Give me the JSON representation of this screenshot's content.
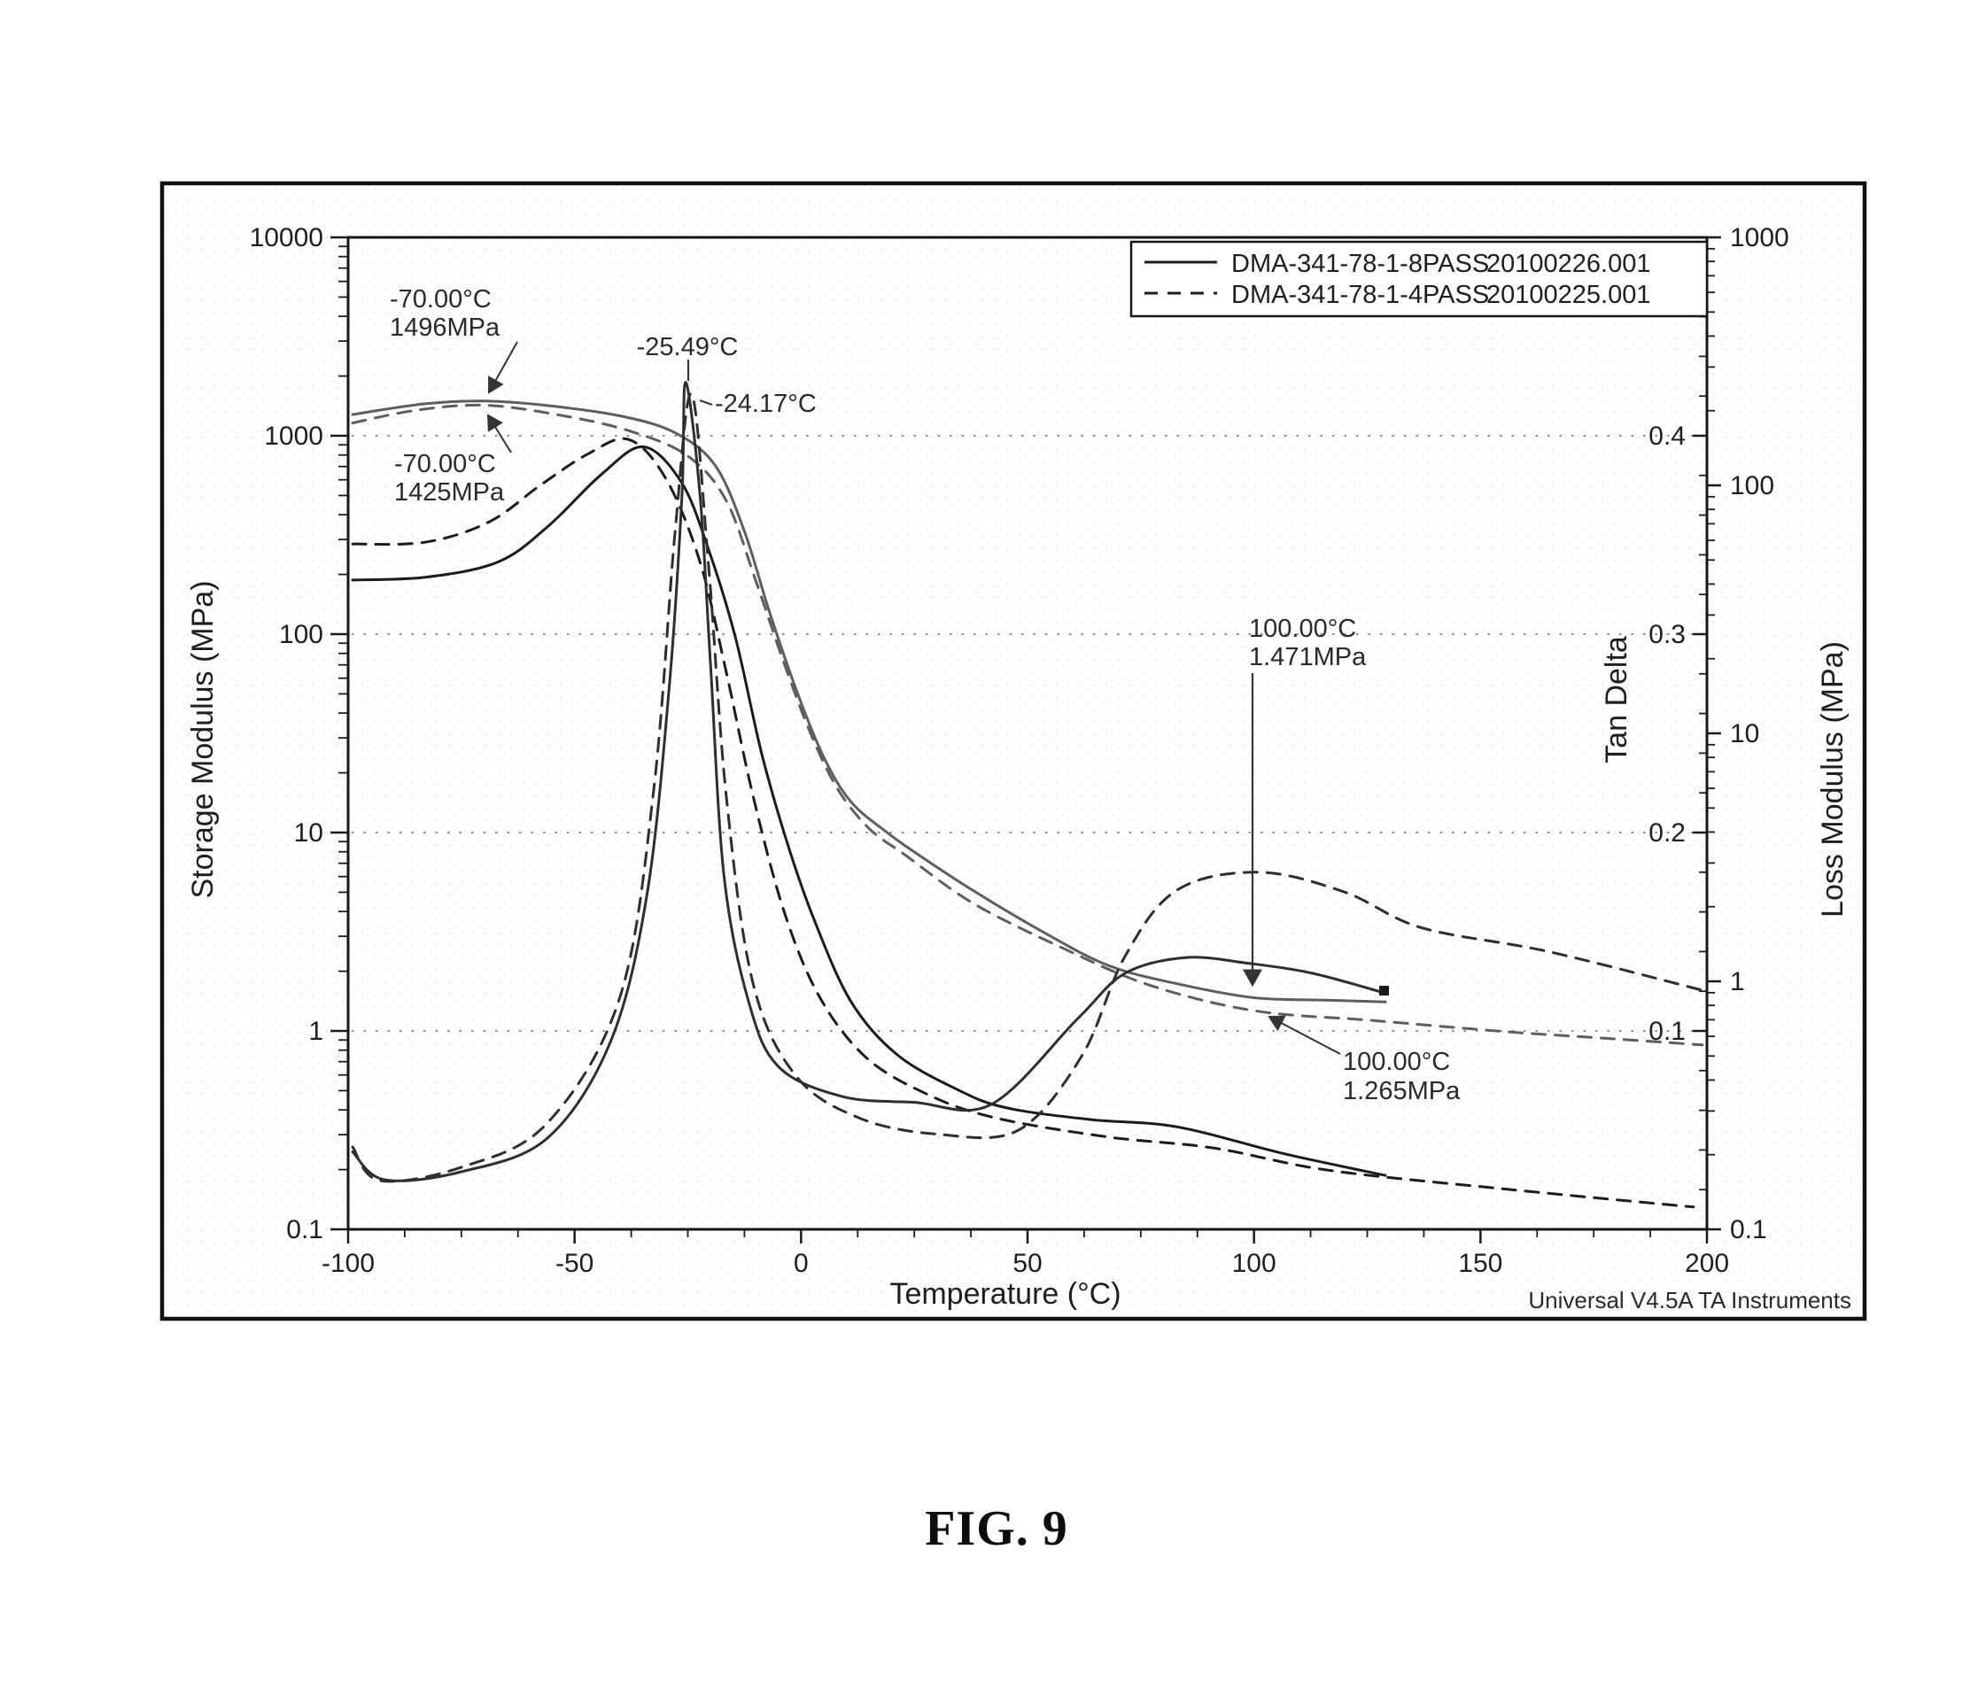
{
  "figure": {
    "caption": "FIG. 9",
    "signature": "Universal V4.5A TA Instruments"
  },
  "annotations": {
    "storage_solid_at_m70": {
      "line1": "-70.00°C",
      "line2": "1496MPa"
    },
    "storage_dashed_at_m70": {
      "line1": "-70.00°C",
      "line2": "1425MPa"
    },
    "tan_solid_peak": {
      "text": "-25.49°C"
    },
    "tan_dashed_peak": {
      "text": "-24.17°C"
    },
    "storage_solid_at_100": {
      "line1": "100.00°C",
      "line2": "1.471MPa"
    },
    "storage_dashed_at_100": {
      "line1": "100.00°C",
      "line2": "1.265MPa"
    }
  },
  "chart_data": {
    "type": "line",
    "title": "",
    "grid": "dotted horizontal gridlines at storage-modulus decades",
    "x_axis": {
      "title": "Temperature (°C)",
      "range": [
        -100,
        200
      ],
      "tick_labels": [
        "-100",
        "-50",
        "0",
        "50",
        "100",
        "150",
        "200"
      ],
      "minor_step": 12.5
    },
    "y_axes": {
      "storage": {
        "title": "Storage Modulus (MPa)",
        "side": "left",
        "scale": "log",
        "range": [
          0.1,
          10000
        ],
        "tick_labels": [
          "10000",
          "1000",
          "100",
          "10",
          "1",
          "0.1"
        ]
      },
      "tan": {
        "title": "Tan Delta",
        "side": "right-inner",
        "scale": "linear",
        "range": [
          0,
          0.5
        ],
        "tick_labels": [
          "0.4",
          "0.3",
          "0.2",
          "0.1"
        ],
        "minor_step": 0.02
      },
      "loss": {
        "title": "Loss Modulus (MPa)",
        "side": "right-outer",
        "scale": "log",
        "range": [
          0.1,
          1000
        ],
        "tick_labels": [
          "1000",
          "100",
          "10",
          "1",
          "0.1"
        ]
      }
    },
    "legend": [
      {
        "label": "DMA-341-78-1-8PASS",
        "file": "20100226.001",
        "style": "solid"
      },
      {
        "label": "DMA-341-78-1-4PASS",
        "file": "20100225.001",
        "style": "dashed"
      }
    ],
    "series": [
      {
        "name": "storage-modulus-8pass",
        "axis": "storage",
        "style": "solid",
        "color": "#5e5e5e",
        "points": [
          [
            -99,
            1280
          ],
          [
            -83,
            1450
          ],
          [
            -70,
            1496
          ],
          [
            -56,
            1420
          ],
          [
            -40,
            1260
          ],
          [
            -28,
            1040
          ],
          [
            -19,
            710
          ],
          [
            -12.5,
            330
          ],
          [
            -7,
            130
          ],
          [
            -1,
            52
          ],
          [
            5,
            24
          ],
          [
            11,
            14.3
          ],
          [
            19,
            10
          ],
          [
            26,
            7.7
          ],
          [
            38,
            5.1
          ],
          [
            54,
            3.1
          ],
          [
            68,
            2.13
          ],
          [
            83,
            1.73
          ],
          [
            100,
            1.471
          ],
          [
            116,
            1.43
          ],
          [
            129,
            1.4
          ]
        ]
      },
      {
        "name": "storage-modulus-4pass",
        "axis": "storage",
        "style": "dashed",
        "color": "#5e5e5e",
        "points": [
          [
            -99,
            1160
          ],
          [
            -85,
            1345
          ],
          [
            -70,
            1425
          ],
          [
            -54,
            1280
          ],
          [
            -38,
            1060
          ],
          [
            -25,
            790
          ],
          [
            -16.5,
            470
          ],
          [
            -10,
            186
          ],
          [
            -4,
            74
          ],
          [
            2,
            32
          ],
          [
            8,
            16.7
          ],
          [
            15,
            10.5
          ],
          [
            23,
            7.7
          ],
          [
            38,
            4.4
          ],
          [
            58,
            2.6
          ],
          [
            77,
            1.7
          ],
          [
            100,
            1.265
          ],
          [
            126,
            1.13
          ],
          [
            156,
            0.99
          ],
          [
            177,
            0.92
          ],
          [
            199,
            0.85
          ]
        ]
      },
      {
        "name": "loss-modulus-8pass",
        "axis": "loss",
        "style": "solid",
        "color": "#1b1b1b",
        "points": [
          [
            -99,
            41.5
          ],
          [
            -83,
            42.6
          ],
          [
            -67,
            49
          ],
          [
            -56,
            68
          ],
          [
            -44,
            111
          ],
          [
            -34.7,
            143
          ],
          [
            -26.3,
            102
          ],
          [
            -20.4,
            55
          ],
          [
            -14.5,
            24.4
          ],
          [
            -8.7,
            8.3
          ],
          [
            -2.8,
            3.5
          ],
          [
            3,
            1.75
          ],
          [
            11,
            0.83
          ],
          [
            21,
            0.51
          ],
          [
            34,
            0.37
          ],
          [
            45,
            0.31
          ],
          [
            64,
            0.277
          ],
          [
            83,
            0.259
          ],
          [
            107,
            0.201
          ],
          [
            129,
            0.165
          ]
        ]
      },
      {
        "name": "loss-modulus-4pass",
        "axis": "loss",
        "style": "dashed",
        "color": "#1b1b1b",
        "points": [
          [
            -99,
            58
          ],
          [
            -83,
            59
          ],
          [
            -69,
            71
          ],
          [
            -57.6,
            100
          ],
          [
            -47,
            134
          ],
          [
            -38,
            153
          ],
          [
            -29.8,
            106
          ],
          [
            -22.3,
            49
          ],
          [
            -16.5,
            17.6
          ],
          [
            -10.6,
            5.6
          ],
          [
            -3.7,
            1.9
          ],
          [
            4,
            0.87
          ],
          [
            14,
            0.5
          ],
          [
            26.5,
            0.36
          ],
          [
            42,
            0.284
          ],
          [
            67.6,
            0.236
          ],
          [
            91,
            0.213
          ],
          [
            116.5,
            0.173
          ],
          [
            156,
            0.145
          ],
          [
            197,
            0.123
          ]
        ]
      },
      {
        "name": "tan-delta-8pass",
        "axis": "tan",
        "style": "solid",
        "color": "#2e2e2e",
        "points": [
          [
            -99,
            0.039
          ],
          [
            -92,
            0.025
          ],
          [
            -75,
            0.029
          ],
          [
            -56,
            0.046
          ],
          [
            -42,
            0.095
          ],
          [
            -34,
            0.169
          ],
          [
            -29,
            0.276
          ],
          [
            -26.3,
            0.37
          ],
          [
            -25.49,
            0.427
          ],
          [
            -22.3,
            0.37
          ],
          [
            -20,
            0.285
          ],
          [
            -17,
            0.178
          ],
          [
            -11.6,
            0.115
          ],
          [
            -5,
            0.082
          ],
          [
            9,
            0.067
          ],
          [
            25,
            0.064
          ],
          [
            42,
            0.063
          ],
          [
            61,
            0.106
          ],
          [
            71.5,
            0.129
          ],
          [
            85,
            0.137
          ],
          [
            99,
            0.134
          ],
          [
            113,
            0.129
          ],
          [
            129,
            0.119
          ]
        ]
      },
      {
        "name": "tan-delta-4pass",
        "axis": "tan",
        "style": "dashed",
        "color": "#2e2e2e",
        "points": [
          [
            -99,
            0.0415
          ],
          [
            -93,
            0.0246
          ],
          [
            -75,
            0.0313
          ],
          [
            -56,
            0.0536
          ],
          [
            -40,
            0.117
          ],
          [
            -32.5,
            0.222
          ],
          [
            -27.8,
            0.352
          ],
          [
            -24.17,
            0.421
          ],
          [
            -20.4,
            0.334
          ],
          [
            -16.5,
            0.218
          ],
          [
            -10.6,
            0.124
          ],
          [
            -1,
            0.077
          ],
          [
            13,
            0.056
          ],
          [
            30,
            0.048
          ],
          [
            48,
            0.05
          ],
          [
            62,
            0.0875
          ],
          [
            71.5,
            0.1375
          ],
          [
            83,
            0.171
          ],
          [
            101,
            0.18
          ],
          [
            120,
            0.17
          ],
          [
            137,
            0.152
          ],
          [
            165,
            0.14
          ],
          [
            199,
            0.1205
          ]
        ]
      }
    ]
  }
}
